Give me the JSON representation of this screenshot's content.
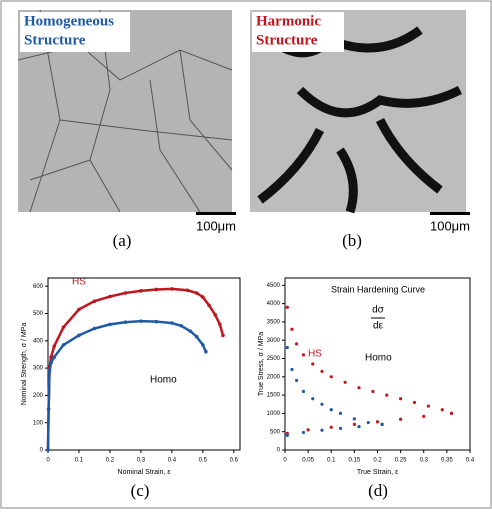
{
  "panels": [
    {
      "title_line1": "Homogeneous",
      "title_line2": "Structure",
      "scale": "100μm",
      "label": "(a)"
    },
    {
      "title_line1": "Harmonic",
      "title_line2": "Structure",
      "scale": "100μm",
      "label": "(b)"
    }
  ],
  "chart_data": [
    {
      "type": "line",
      "label": "(c)",
      "xlabel": "Nominal Strain, ε",
      "ylabel": "Nominal Strength, σ / MPa",
      "xlim": [
        0,
        0.62
      ],
      "ylim": [
        0,
        630
      ],
      "xticks": [
        0,
        0.1,
        0.2,
        0.3,
        0.4,
        0.5,
        0.6
      ],
      "yticks": [
        0,
        100,
        200,
        300,
        400,
        500,
        600
      ],
      "annotations": [
        "HS",
        "Homo"
      ],
      "series": [
        {
          "color": "#c0161e",
          "x": [
            0,
            0.002,
            0.005,
            0.01,
            0.02,
            0.05,
            0.1,
            0.15,
            0.2,
            0.25,
            0.3,
            0.35,
            0.4,
            0.45,
            0.48,
            0.5,
            0.52,
            0.54,
            0.555,
            0.565
          ],
          "values": [
            0,
            150,
            300,
            340,
            380,
            450,
            515,
            545,
            562,
            575,
            583,
            588,
            590,
            585,
            575,
            560,
            530,
            495,
            460,
            420
          ]
        },
        {
          "color": "#1f5aa6",
          "x": [
            0,
            0.002,
            0.005,
            0.01,
            0.02,
            0.05,
            0.1,
            0.15,
            0.2,
            0.25,
            0.3,
            0.35,
            0.4,
            0.43,
            0.46,
            0.48,
            0.5,
            0.51
          ],
          "values": [
            0,
            150,
            290,
            320,
            340,
            385,
            420,
            445,
            460,
            468,
            472,
            470,
            465,
            455,
            435,
            415,
            385,
            360
          ]
        }
      ]
    },
    {
      "type": "scatter",
      "label": "(d)",
      "title": "Strain Hardening Curve",
      "xlabel": "True Strain, ε",
      "ylabel": "True Stress, σ / MPa",
      "xlim": [
        0,
        0.4
      ],
      "ylim": [
        0,
        4700
      ],
      "xticks": [
        0,
        0.05,
        0.1,
        0.15,
        0.2,
        0.25,
        0.3,
        0.35,
        0.4
      ],
      "yticks": [
        0,
        500,
        1000,
        1500,
        2000,
        2500,
        3000,
        3500,
        4000,
        4500
      ],
      "annotations": [
        "HS",
        "Homo",
        "dσ",
        "dε"
      ],
      "series": [
        {
          "color": "#c0161e",
          "x": [
            0.005,
            0.015,
            0.025,
            0.04,
            0.06,
            0.08,
            0.1,
            0.13,
            0.16,
            0.19,
            0.22,
            0.25,
            0.28,
            0.31,
            0.34,
            0.36
          ],
          "values": [
            3900,
            3300,
            2900,
            2600,
            2350,
            2150,
            2000,
            1850,
            1700,
            1600,
            1500,
            1400,
            1300,
            1200,
            1100,
            1000
          ]
        },
        {
          "color": "#1f5aa6",
          "x": [
            0.005,
            0.015,
            0.025,
            0.04,
            0.06,
            0.08,
            0.1,
            0.12,
            0.15,
            0.18,
            0.21
          ],
          "values": [
            2800,
            2200,
            1900,
            1600,
            1400,
            1250,
            1100,
            1000,
            850,
            750,
            700
          ]
        },
        {
          "color": "#c0161e",
          "x": [
            0.005,
            0.05,
            0.1,
            0.15,
            0.2,
            0.25,
            0.3,
            0.36
          ],
          "values": [
            450,
            550,
            620,
            700,
            770,
            840,
            920,
            1000
          ]
        },
        {
          "color": "#1f5aa6",
          "x": [
            0.005,
            0.04,
            0.08,
            0.12,
            0.16,
            0.21
          ],
          "values": [
            400,
            480,
            540,
            590,
            640,
            700
          ]
        }
      ]
    }
  ]
}
